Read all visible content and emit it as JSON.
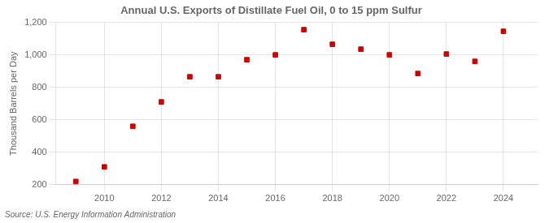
{
  "chart_data": {
    "type": "scatter",
    "title": "Annual U.S. Exports of Distillate Fuel Oil, 0 to 15 ppm Sulfur",
    "ylabel": "Thousand Barrels per Day",
    "annotations": [
      "Source: U.S. Energy Information Administration"
    ],
    "x": [
      2009,
      2010,
      2011,
      2012,
      2013,
      2014,
      2015,
      2016,
      2017,
      2018,
      2019,
      2020,
      2021,
      2022,
      2023,
      2024
    ],
    "values": [
      220,
      310,
      560,
      710,
      865,
      865,
      970,
      1000,
      1155,
      1065,
      1035,
      1000,
      885,
      1005,
      960,
      1145
    ],
    "color": "#cc0000",
    "marker": "square",
    "xlim": [
      2008.3,
      2025.2
    ],
    "xticks": [
      2010,
      2012,
      2014,
      2016,
      2018,
      2020,
      2022,
      2024
    ],
    "ylim": [
      200,
      1200
    ],
    "yticks": [
      200,
      400,
      600,
      800,
      {
        "value": 1000,
        "label": "1,000"
      },
      {
        "value": 1200,
        "label": "1,200"
      }
    ],
    "grid": true
  }
}
